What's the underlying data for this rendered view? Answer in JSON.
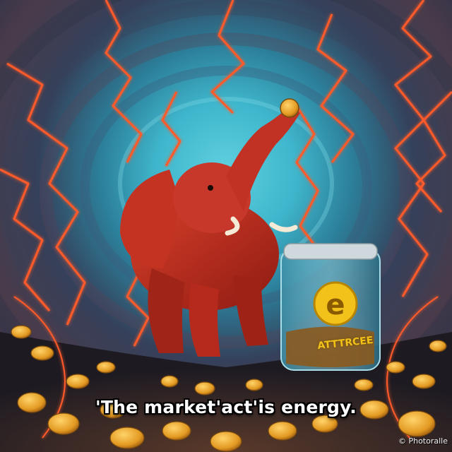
{
  "image": {
    "caption": "'The market'act'is energy.",
    "watermark": "© Photoralle",
    "jar_label": "ATTTRCEE",
    "jar_symbol": "e"
  },
  "colors": {
    "vortex_center": "#3fb6cc",
    "vortex_outer": "#263047",
    "elephant": "#b8281c",
    "lightning": "#ff5a2a",
    "coin": "#e39a22"
  }
}
